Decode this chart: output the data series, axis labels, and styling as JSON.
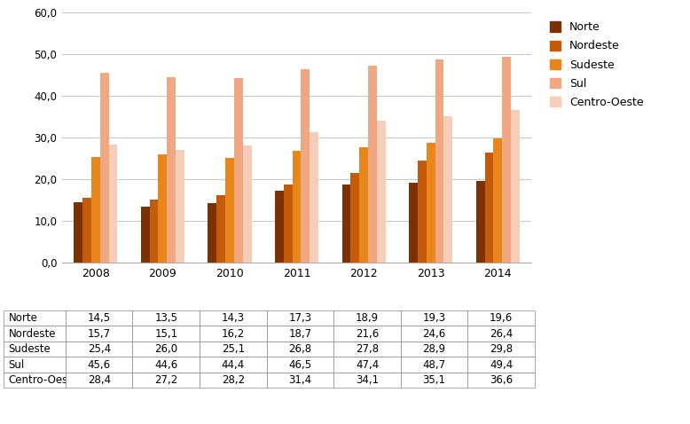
{
  "years": [
    "2008",
    "2009",
    "2010",
    "2011",
    "2012",
    "2013",
    "2014"
  ],
  "series": {
    "Norte": [
      14.5,
      13.5,
      14.3,
      17.3,
      18.9,
      19.3,
      19.6
    ],
    "Nordeste": [
      15.7,
      15.1,
      16.2,
      18.7,
      21.6,
      24.6,
      26.4
    ],
    "Sudeste": [
      25.4,
      26.0,
      25.1,
      26.8,
      27.8,
      28.9,
      29.8
    ],
    "Sul": [
      45.6,
      44.6,
      44.4,
      46.5,
      47.4,
      48.7,
      49.4
    ],
    "Centro-Oeste": [
      28.4,
      27.2,
      28.2,
      31.4,
      34.1,
      35.1,
      36.6
    ]
  },
  "colors": {
    "Norte": "#7B3100",
    "Nordeste": "#C45A0A",
    "Sudeste": "#E8861C",
    "Sul": "#F0A882",
    "Centro-Oeste": "#F5CDB8"
  },
  "ylim": [
    0,
    60
  ],
  "yticks": [
    0.0,
    10.0,
    20.0,
    30.0,
    40.0,
    50.0,
    60.0
  ],
  "bar_width": 0.13,
  "legend_order": [
    "Norte",
    "Nordeste",
    "Sudeste",
    "Sul",
    "Centro-Oeste"
  ],
  "table_rows": [
    "Norte",
    "Nordeste",
    "Sudeste",
    "Sul",
    "Centro-Oeste"
  ],
  "background_color": "#FFFFFF",
  "grid_color": "#C8C8C8"
}
